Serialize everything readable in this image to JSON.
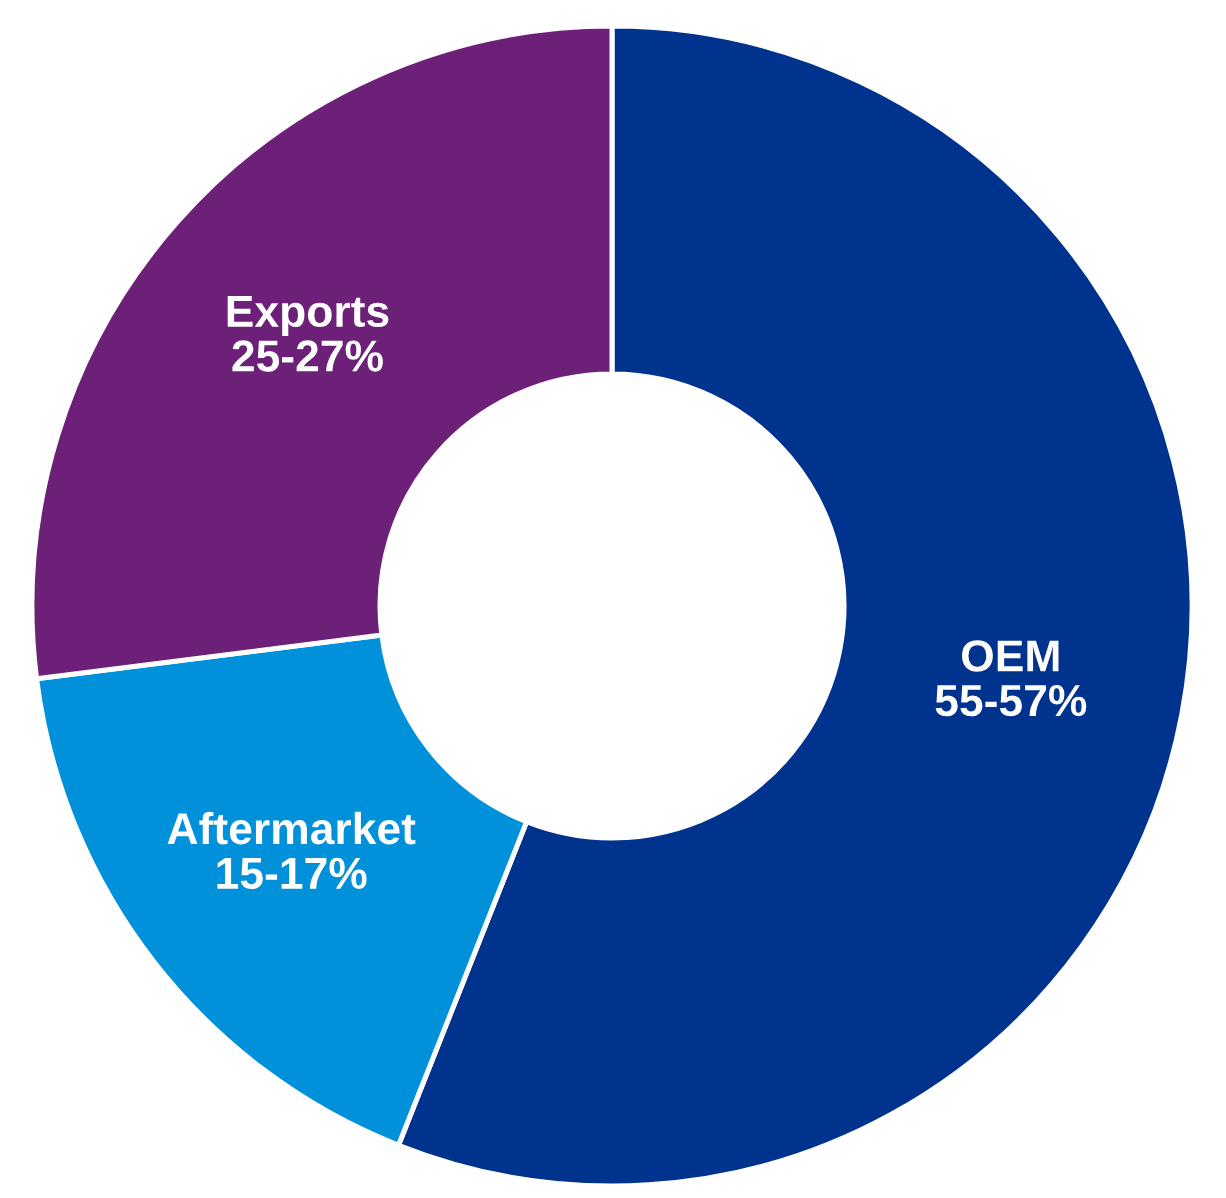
{
  "chart_data": {
    "type": "donut",
    "categories": [
      "OEM",
      "Aftermarket",
      "Exports"
    ],
    "values": [
      56,
      17,
      27
    ],
    "colors": [
      "#00338d",
      "#0091da",
      "#6d2077"
    ],
    "annotations": [
      "55-57%",
      "15-17%",
      "25-27%"
    ]
  }
}
